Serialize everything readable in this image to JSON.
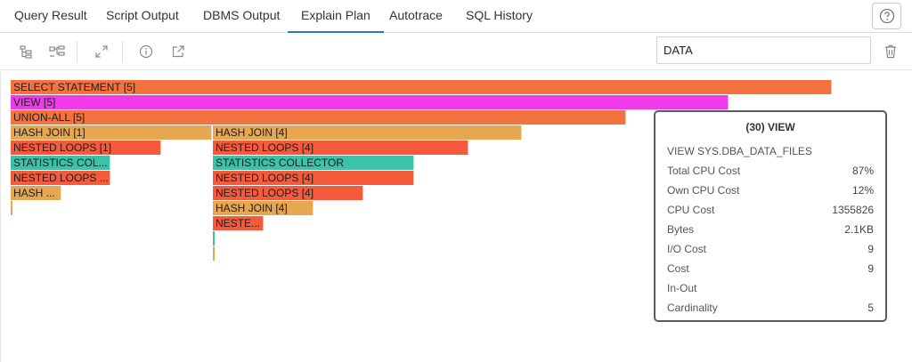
{
  "tabs": [
    {
      "label": "Query Result"
    },
    {
      "label": "Script Output"
    },
    {
      "label": "DBMS Output"
    },
    {
      "label": "Explain Plan"
    },
    {
      "label": "Autotrace"
    },
    {
      "label": "SQL History"
    }
  ],
  "active_tab": "Explain Plan",
  "toolbar": {
    "search_value": "DATA",
    "icons": [
      "tree-view-icon",
      "diagram-view-icon",
      "expand-icon",
      "info-icon",
      "open-external-icon",
      "trash-icon"
    ]
  },
  "colors": {
    "select": "#f2733f",
    "view": "#ee3ae8",
    "hash_join": "#e6a750",
    "nested_loops": "#f55a3d",
    "statistics": "#39c4aa",
    "accent": "#2a7ab8"
  },
  "plan": {
    "select_statement": "SELECT STATEMENT [5]",
    "view": "VIEW [5]",
    "union_all": "UNION-ALL [5]",
    "hash_join_1": "HASH JOIN [1]",
    "nested_loops_1": "NESTED LOOPS [1]",
    "statistics_col_short": "STATISTICS COL...",
    "nested_loops_short": "NESTED LOOPS ...",
    "hash_short": "HASH ...",
    "hash_join_4a": "HASH JOIN [4]",
    "nested_loops_4a": "NESTED LOOPS [4]",
    "statistics_collector": "STATISTICS COLLECTOR",
    "nested_loops_4b": "NESTED LOOPS [4]",
    "nested_loops_4c": "NESTED LOOPS [4]",
    "hash_join_4b": "HASH JOIN [4]",
    "neste_short": "NESTE..."
  },
  "tooltip": {
    "title": "(30) VIEW",
    "subtitle": "VIEW SYS.DBA_DATA_FILES",
    "rows": [
      {
        "label": "Total CPU Cost",
        "value": "87%"
      },
      {
        "label": "Own CPU Cost",
        "value": "12%"
      },
      {
        "label": "CPU Cost",
        "value": "1355826"
      },
      {
        "label": "Bytes",
        "value": "2.1KB"
      },
      {
        "label": "I/O Cost",
        "value": "9"
      },
      {
        "label": "Cost",
        "value": "9"
      },
      {
        "label": "In-Out",
        "value": ""
      },
      {
        "label": "Cardinality",
        "value": "5"
      }
    ]
  }
}
